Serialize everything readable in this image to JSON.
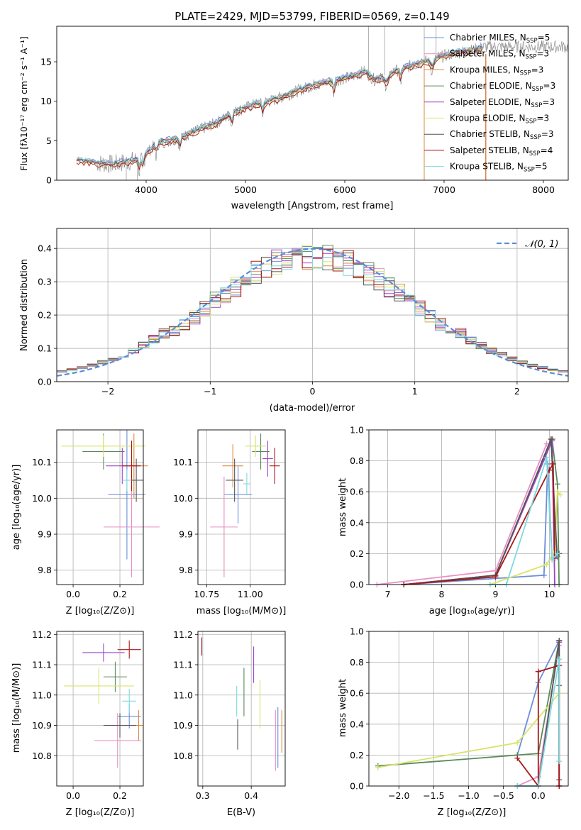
{
  "page_title": "PLATE=2429, MJD=53799, FIBERID=0569, z=0.149",
  "colors": {
    "cm": "#6a8fd8",
    "sm": "#e98fc4",
    "km": "#d98c3c",
    "ce": "#5a8a5a",
    "se": "#9b44c8",
    "ke": "#d9e36a",
    "cs": "#555555",
    "ss": "#aa1818",
    "ks": "#7ed9df",
    "data": "#808080",
    "normal": "#5b8ddb"
  },
  "chart_data": [
    {
      "id": "spectrum",
      "type": "line",
      "title": "PLATE=2429, MJD=53799, FIBERID=0569, z=0.149",
      "xlabel": "wavelength [Angstrom, rest frame]",
      "ylabel": "Flux [fλ10⁻¹⁷ erg cm⁻² s⁻¹ A⁻¹]",
      "xlim": [
        3100,
        8250
      ],
      "ylim": [
        0,
        19.5
      ],
      "xticks": [
        "4000",
        "5000",
        "6000",
        "7000",
        "8000"
      ],
      "yticks": [
        "0",
        "5",
        "10",
        "15"
      ],
      "legend": "top-right",
      "series": [
        {
          "name": "Chabrier MILES, NSSP=5",
          "color": "cm",
          "label": "Chabrier MILES, N",
          "sub": "SSP",
          "suffix": "=5"
        },
        {
          "name": "Salpeter MILES, NSSP=3",
          "color": "sm",
          "label": "Salpeter MILES, N",
          "sub": "SSP",
          "suffix": "=3"
        },
        {
          "name": "Kroupa MILES, NSSP=3",
          "color": "km",
          "label": "Kroupa MILES, N",
          "sub": "SSP",
          "suffix": "=3"
        },
        {
          "name": "Chabrier ELODIE, NSSP=3",
          "color": "ce",
          "label": "Chabrier ELODIE, N",
          "sub": "SSP",
          "suffix": "=3"
        },
        {
          "name": "Salpeter ELODIE, NSSP=3",
          "color": "se",
          "label": "Salpeter ELODIE, N",
          "sub": "SSP",
          "suffix": "=3"
        },
        {
          "name": "Kroupa ELODIE, NSSP=3",
          "color": "ke",
          "label": "Kroupa ELODIE, N",
          "sub": "SSP",
          "suffix": "=3"
        },
        {
          "name": "Chabrier STELIB, NSSP=3",
          "color": "cs",
          "label": "Chabrier STELIB, N",
          "sub": "SSP",
          "suffix": "=3"
        },
        {
          "name": "Salpeter STELIB, NSSP=4",
          "color": "ss",
          "label": "Salpeter STELIB, N",
          "sub": "SSP",
          "suffix": "=4"
        },
        {
          "name": "Kroupa STELIB, NSSP=5",
          "color": "ks",
          "label": "Kroupa STELIB, N",
          "sub": "SSP",
          "suffix": "=5"
        }
      ],
      "continuum": [
        [
          3300,
          2.5
        ],
        [
          3500,
          2.2
        ],
        [
          3650,
          2.0
        ],
        [
          3800,
          2.3
        ],
        [
          3950,
          2.7
        ],
        [
          4100,
          4.6
        ],
        [
          4300,
          5.2
        ],
        [
          4500,
          6.2
        ],
        [
          4700,
          7.2
        ],
        [
          4900,
          8.7
        ],
        [
          5100,
          9.6
        ],
        [
          5300,
          10.2
        ],
        [
          5500,
          11.2
        ],
        [
          5700,
          12.1
        ],
        [
          5900,
          12.6
        ],
        [
          6100,
          13.2
        ],
        [
          6200,
          13.8
        ],
        [
          6300,
          12.7
        ],
        [
          6500,
          13.8
        ],
        [
          6700,
          14.6
        ],
        [
          6900,
          15.4
        ],
        [
          7100,
          16.1
        ],
        [
          7300,
          16.5
        ],
        [
          7400,
          16.9
        ]
      ]
    },
    {
      "id": "residuals",
      "type": "bar",
      "xlabel": "(data-model)/error",
      "ylabel": "Normed distribution",
      "xlim": [
        -2.5,
        2.5
      ],
      "ylim": [
        0,
        0.46
      ],
      "xticks": [
        "−2",
        "−1",
        "0",
        "1",
        "2"
      ],
      "yticks": [
        "0.0",
        "0.1",
        "0.2",
        "0.3",
        "0.4"
      ],
      "grid": true,
      "legend": "top-right",
      "legend_label": "𝒩(0, 1)",
      "bin_width": 0.1
    },
    {
      "id": "age-z",
      "type": "scatter",
      "xlabel": "Z [log₁₀(Z/Z⊙)]",
      "ylabel": "age  [log₁₀(age/yr)]",
      "xlim": [
        -0.07,
        0.3
      ],
      "ylim": [
        9.76,
        10.19
      ],
      "xticks": [
        "0.0",
        "0.2"
      ],
      "yticks": [
        "9.8",
        "9.9",
        "10.0",
        "10.1"
      ],
      "points": [
        {
          "color": "cm",
          "x": 0.23,
          "y": 10.01,
          "ex": 0.08,
          "ey": 0.18
        },
        {
          "color": "sm",
          "x": 0.25,
          "y": 9.92,
          "ex": 0.12,
          "ey": 0.14
        },
        {
          "color": "km",
          "x": 0.26,
          "y": 10.09,
          "ex": 0.06,
          "ey": 0.09
        },
        {
          "color": "ce",
          "x": 0.13,
          "y": 10.13,
          "ex": 0.09,
          "ey": 0.05
        },
        {
          "color": "se",
          "x": 0.21,
          "y": 10.09,
          "ex": 0.07,
          "ey": 0.05
        },
        {
          "color": "ke",
          "x": 0.13,
          "y": 10.145,
          "ex": 0.18,
          "ey": 0.03
        },
        {
          "color": "cs",
          "x": 0.27,
          "y": 10.05,
          "ex": 0.03,
          "ey": 0.06
        },
        {
          "color": "ss",
          "x": 0.25,
          "y": 10.09,
          "ex": 0.04,
          "ey": 0.07
        },
        {
          "color": "ks",
          "x": 0.23,
          "y": 10.05,
          "ex": 0.02,
          "ey": 0.03
        }
      ]
    },
    {
      "id": "age-mass",
      "type": "scatter",
      "xlabel": "mass [log₁₀(M/M⊙)]",
      "ylabel": "",
      "xlim": [
        10.7,
        11.2
      ],
      "ylim": [
        9.76,
        10.19
      ],
      "xticks": [
        "10.75",
        "11.00"
      ],
      "yticks": [
        "9.8",
        "9.9",
        "10.0",
        "10.1"
      ],
      "points": [
        {
          "color": "cm",
          "x": 10.93,
          "y": 10.01,
          "ex": 0.08,
          "ey": 0.08
        },
        {
          "color": "sm",
          "x": 10.85,
          "y": 9.92,
          "ex": 0.08,
          "ey": 0.14
        },
        {
          "color": "km",
          "x": 10.9,
          "y": 10.09,
          "ex": 0.06,
          "ey": 0.06
        },
        {
          "color": "ce",
          "x": 11.06,
          "y": 10.13,
          "ex": 0.05,
          "ey": 0.05
        },
        {
          "color": "se",
          "x": 11.1,
          "y": 10.11,
          "ex": 0.03,
          "ey": 0.05
        },
        {
          "color": "ke",
          "x": 11.03,
          "y": 10.145,
          "ex": 0.06,
          "ey": 0.03
        },
        {
          "color": "cs",
          "x": 10.91,
          "y": 10.05,
          "ex": 0.05,
          "ey": 0.06
        },
        {
          "color": "ss",
          "x": 11.14,
          "y": 10.09,
          "ex": 0.03,
          "ey": 0.05
        },
        {
          "color": "ks",
          "x": 10.98,
          "y": 10.04,
          "ex": 0.02,
          "ey": 0.03
        }
      ]
    },
    {
      "id": "mass-weight-age",
      "type": "line",
      "xlabel": "age  [log₁₀(age/yr)]",
      "ylabel": "mass weight",
      "xlim": [
        6.65,
        10.35
      ],
      "ylim": [
        0,
        1.0
      ],
      "xticks": [
        "7",
        "8",
        "9",
        "10"
      ],
      "yticks": [
        "0.0",
        "0.2",
        "0.4",
        "0.6",
        "0.8",
        "1.0"
      ],
      "grid": true,
      "series": [
        {
          "color": "sm",
          "points": [
            [
              6.8,
              0
            ],
            [
              9.0,
              0.09
            ],
            [
              9.95,
              0.91
            ]
          ]
        },
        {
          "color": "cm",
          "points": [
            [
              7.3,
              0
            ],
            [
              9.9,
              0.06
            ],
            [
              9.97,
              0.78
            ],
            [
              10.05,
              0.17
            ],
            [
              10.15,
              0.18
            ]
          ]
        },
        {
          "color": "km",
          "points": [
            [
              7.3,
              0
            ],
            [
              9.0,
              0.06
            ],
            [
              10.06,
              0.94
            ]
          ]
        },
        {
          "color": "ce",
          "points": [
            [
              7.3,
              0
            ],
            [
              9.0,
              0.06
            ],
            [
              10.05,
              0.94
            ],
            [
              10.15,
              0.65
            ],
            [
              10.18,
              0.0
            ]
          ]
        },
        {
          "color": "se",
          "points": [
            [
              7.3,
              0
            ],
            [
              9.0,
              0.06
            ],
            [
              10.05,
              0.93
            ],
            [
              10.1,
              0.0
            ]
          ]
        },
        {
          "color": "ke",
          "points": [
            [
              8.9,
              0
            ],
            [
              9.95,
              0.13
            ],
            [
              10.1,
              0.22
            ],
            [
              10.15,
              0.6
            ],
            [
              10.2,
              0.58
            ]
          ]
        },
        {
          "color": "cs",
          "points": [
            [
              7.3,
              0
            ],
            [
              9.0,
              0.06
            ],
            [
              10.03,
              0.94
            ],
            [
              10.14,
              0.2
            ],
            [
              10.18,
              0.2
            ]
          ]
        },
        {
          "color": "ss",
          "points": [
            [
              7.3,
              0
            ],
            [
              9.0,
              0.05
            ],
            [
              10.0,
              0.74
            ],
            [
              10.07,
              0.78
            ],
            [
              10.1,
              0.17
            ]
          ]
        },
        {
          "color": "ks",
          "points": [
            [
              8.9,
              0
            ],
            [
              9.2,
              0.0
            ],
            [
              9.95,
              0.82
            ],
            [
              10.05,
              0.16
            ],
            [
              10.15,
              0.2
            ]
          ]
        }
      ]
    },
    {
      "id": "mass-z",
      "type": "scatter",
      "xlabel": "Z [log₁₀(Z/Z⊙)]",
      "ylabel": "mass [log₁₀(M/M⊙)]",
      "xlim": [
        -0.07,
        0.3
      ],
      "ylim": [
        10.7,
        11.21
      ],
      "xticks": [
        "0.0",
        "0.2"
      ],
      "yticks": [
        "10.8",
        "10.9",
        "11.0",
        "11.1",
        "11.2"
      ],
      "points": [
        {
          "color": "cm",
          "x": 0.24,
          "y": 10.93,
          "ex": 0.05,
          "ey": 0.04
        },
        {
          "color": "sm",
          "x": 0.19,
          "y": 10.85,
          "ex": 0.1,
          "ey": 0.09
        },
        {
          "color": "km",
          "x": 0.28,
          "y": 10.9,
          "ex": 0.02,
          "ey": 0.05
        },
        {
          "color": "ce",
          "x": 0.18,
          "y": 11.06,
          "ex": 0.05,
          "ey": 0.05
        },
        {
          "color": "se",
          "x": 0.13,
          "y": 11.14,
          "ex": 0.09,
          "ey": 0.03
        },
        {
          "color": "ke",
          "x": 0.11,
          "y": 11.03,
          "ex": 0.15,
          "ey": 0.06
        },
        {
          "color": "cs",
          "x": 0.2,
          "y": 10.9,
          "ex": 0.07,
          "ey": 0.04
        },
        {
          "color": "ss",
          "x": 0.24,
          "y": 11.15,
          "ex": 0.05,
          "ey": 0.03
        },
        {
          "color": "ks",
          "x": 0.24,
          "y": 10.98,
          "ex": 0.03,
          "ey": 0.04
        }
      ]
    },
    {
      "id": "mass-ebv",
      "type": "scatter",
      "xlabel": "E(B-V)",
      "ylabel": "",
      "xlim": [
        0.29,
        0.47
      ],
      "ylim": [
        10.7,
        11.21
      ],
      "xticks": [
        "0.3",
        "0.4"
      ],
      "yticks": [
        "10.8",
        "10.9",
        "11.0",
        "11.1",
        "11.2"
      ],
      "points": [
        {
          "color": "cm",
          "x": 0.455,
          "y": 10.86,
          "ey": 0.1
        },
        {
          "color": "sm",
          "x": 0.45,
          "y": 10.85,
          "ey": 0.1
        },
        {
          "color": "km",
          "x": 0.463,
          "y": 10.88,
          "ey": 0.07
        },
        {
          "color": "ce",
          "x": 0.385,
          "y": 11.01,
          "ey": 0.08
        },
        {
          "color": "se",
          "x": 0.405,
          "y": 11.1,
          "ey": 0.06
        },
        {
          "color": "ke",
          "x": 0.418,
          "y": 10.97,
          "ey": 0.08
        },
        {
          "color": "cs",
          "x": 0.372,
          "y": 10.87,
          "ey": 0.05
        },
        {
          "color": "ss",
          "x": 0.298,
          "y": 11.16,
          "ey": 0.03
        },
        {
          "color": "ks",
          "x": 0.37,
          "y": 10.98,
          "ey": 0.05
        }
      ]
    },
    {
      "id": "mass-weight-z",
      "type": "line",
      "xlabel": "Z [log₁₀(Z/Z⊙)]",
      "ylabel": "mass weight",
      "xlim": [
        -2.43,
        0.43
      ],
      "ylim": [
        0,
        1.0
      ],
      "xticks": [
        "−2.0",
        "−1.5",
        "−1.0",
        "−0.5",
        "0.0"
      ],
      "yticks": [
        "0.0",
        "0.2",
        "0.4",
        "0.6",
        "0.8",
        "1.0"
      ],
      "grid": true,
      "series": [
        {
          "color": "cm",
          "points": [
            [
              -0.3,
              0.2
            ],
            [
              0.0,
              0.67
            ],
            [
              0.3,
              0.94
            ]
          ]
        },
        {
          "color": "sm",
          "points": [
            [
              -0.3,
              0.0
            ],
            [
              0.0,
              0.06
            ],
            [
              0.3,
              0.91
            ]
          ]
        },
        {
          "color": "km",
          "points": [
            [
              0.3,
              0.94
            ],
            [
              0.3,
              0.0
            ]
          ]
        },
        {
          "color": "ce",
          "points": [
            [
              -2.3,
              0.13
            ],
            [
              -0.3,
              0.2
            ],
            [
              0.0,
              0.21
            ],
            [
              0.3,
              0.94
            ],
            [
              0.3,
              0.65
            ]
          ]
        },
        {
          "color": "se",
          "points": [
            [
              0.3,
              0.93
            ],
            [
              0.3,
              0.0
            ]
          ]
        },
        {
          "color": "ke",
          "points": [
            [
              -2.3,
              0.12
            ],
            [
              -0.3,
              0.28
            ],
            [
              0.3,
              0.6
            ]
          ]
        },
        {
          "color": "cs",
          "points": [
            [
              -0.3,
              0.0
            ],
            [
              0.0,
              0.0
            ],
            [
              0.3,
              0.94
            ],
            [
              0.3,
              0.04
            ]
          ]
        },
        {
          "color": "ss",
          "points": [
            [
              -0.3,
              0.18
            ],
            [
              0.0,
              0.0
            ],
            [
              0.0,
              0.74
            ],
            [
              0.3,
              0.78
            ],
            [
              0.3,
              0.0
            ]
          ]
        },
        {
          "color": "ks",
          "points": [
            [
              -0.3,
              0.0
            ],
            [
              0.0,
              0.0
            ],
            [
              0.3,
              0.82
            ],
            [
              0.3,
              0.16
            ]
          ]
        }
      ]
    }
  ]
}
